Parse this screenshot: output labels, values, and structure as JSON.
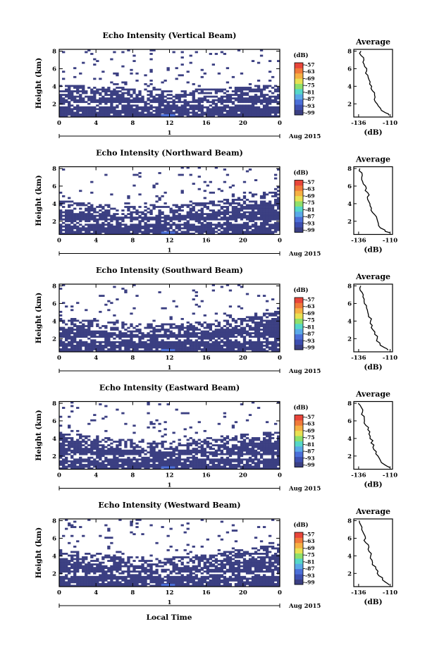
{
  "chart_data": [
    {
      "type": "heatmap",
      "title": "Echo Intensity (Vertical Beam)",
      "ylabel": "Height (km)",
      "xticks": [
        "0",
        "4",
        "8",
        "12",
        "16",
        "20",
        "0"
      ],
      "yticks": [
        "2",
        "4",
        "6",
        "8"
      ],
      "date_label": "1",
      "date_suffix": "Aug 2015",
      "colorbar_unit": "(dB)",
      "colorbar_ticks": [
        "-57",
        "-63",
        "-69",
        "-75",
        "-81",
        "-87",
        "-93",
        "-99"
      ],
      "profile_title": "Average",
      "profile_xticks": [
        "-136",
        "-110"
      ],
      "profile_yticks": [
        "2",
        "4",
        "6",
        "8"
      ],
      "profile_xlabel": "(dB)",
      "xlim": [
        0,
        24
      ],
      "ylim": [
        0.5,
        8.2
      ],
      "boundary_height": [
        3.7,
        3.6,
        3.5,
        3.4,
        3.3,
        3.2,
        3.1,
        3.1,
        3.2,
        3.3,
        3.5,
        3.6,
        3.6
      ],
      "profile": {
        "height": [
          0.7,
          1.0,
          1.5,
          2.0,
          2.5,
          3.0,
          3.5,
          4.0,
          4.5,
          5.0,
          5.5,
          6.0,
          6.5,
          7.0,
          7.5,
          8.0
        ],
        "db": [
          -111,
          -114,
          -118,
          -121,
          -123,
          -123,
          -125,
          -126,
          -127,
          -128,
          -130,
          -130,
          -132,
          -132,
          -134,
          -134
        ]
      }
    },
    {
      "type": "heatmap",
      "title": "Echo Intensity (Northward Beam)",
      "ylabel": "Height (km)",
      "xticks": [
        "0",
        "4",
        "8",
        "12",
        "16",
        "20",
        "0"
      ],
      "yticks": [
        "2",
        "4",
        "6",
        "8"
      ],
      "date_label": "1",
      "date_suffix": "Aug 2015",
      "colorbar_unit": "(dB)",
      "colorbar_ticks": [
        "-57",
        "-63",
        "-69",
        "-75",
        "-81",
        "-87",
        "-93",
        "-99"
      ],
      "profile_title": "Average",
      "profile_xticks": [
        "-136",
        "-110"
      ],
      "profile_yticks": [
        "2",
        "4",
        "6",
        "8"
      ],
      "profile_xlabel": "(dB)",
      "xlim": [
        0,
        24
      ],
      "ylim": [
        0.5,
        8.2
      ],
      "boundary_height": [
        3.9,
        3.7,
        3.5,
        3.3,
        3.2,
        3.2,
        3.3,
        3.5,
        3.7,
        4.0,
        4.4,
        4.8,
        5.0
      ],
      "profile": {
        "height": [
          0.7,
          1.0,
          1.5,
          2.0,
          2.5,
          3.0,
          3.5,
          4.0,
          4.5,
          5.0,
          5.5,
          6.0,
          6.5,
          7.0,
          7.5,
          8.0
        ],
        "db": [
          -111,
          -115,
          -119,
          -121,
          -122,
          -124,
          -125,
          -126,
          -128,
          -128,
          -130,
          -131,
          -132,
          -133,
          -134,
          -135
        ]
      }
    },
    {
      "type": "heatmap",
      "title": "Echo Intensity (Southward Beam)",
      "ylabel": "Height (km)",
      "xticks": [
        "0",
        "4",
        "8",
        "12",
        "16",
        "20",
        "0"
      ],
      "yticks": [
        "2",
        "4",
        "6",
        "8"
      ],
      "date_label": "1",
      "date_suffix": "Aug 2015",
      "colorbar_unit": "(dB)",
      "colorbar_ticks": [
        "-57",
        "-63",
        "-69",
        "-75",
        "-81",
        "-87",
        "-93",
        "-99"
      ],
      "profile_title": "Average",
      "profile_xticks": [
        "-136",
        "-110"
      ],
      "profile_yticks": [
        "2",
        "4",
        "6",
        "8"
      ],
      "profile_xlabel": "(dB)",
      "xlim": [
        0,
        24
      ],
      "ylim": [
        0.5,
        8.2
      ],
      "boundary_height": [
        4.0,
        3.8,
        3.6,
        3.4,
        3.3,
        3.2,
        3.3,
        3.4,
        3.5,
        3.6,
        4.0,
        4.6,
        5.2
      ],
      "profile": {
        "height": [
          0.7,
          1.0,
          1.5,
          2.0,
          2.5,
          3.0,
          3.5,
          4.0,
          4.5,
          5.0,
          5.5,
          6.0,
          6.5,
          7.0,
          7.5,
          8.0
        ],
        "db": [
          -112,
          -115,
          -119,
          -121,
          -122,
          -124,
          -125,
          -126,
          -127,
          -128,
          -130,
          -131,
          -132,
          -133,
          -134,
          -135
        ]
      }
    },
    {
      "type": "heatmap",
      "title": "Echo Intensity (Eastward Beam)",
      "ylabel": "Height (km)",
      "xticks": [
        "0",
        "4",
        "8",
        "12",
        "16",
        "20",
        "0"
      ],
      "yticks": [
        "2",
        "4",
        "6",
        "8"
      ],
      "date_label": "1",
      "date_suffix": "Aug 2015",
      "colorbar_unit": "(dB)",
      "colorbar_ticks": [
        "-57",
        "-63",
        "-69",
        "-75",
        "-81",
        "-87",
        "-93",
        "-99"
      ],
      "profile_title": "Average",
      "profile_xticks": [
        "-136",
        "-110"
      ],
      "profile_yticks": [
        "2",
        "4",
        "6",
        "8"
      ],
      "profile_xlabel": "(dB)",
      "xlim": [
        0,
        24
      ],
      "ylim": [
        0.5,
        8.2
      ],
      "boundary_height": [
        4.2,
        4.0,
        3.8,
        3.6,
        3.4,
        3.3,
        3.3,
        3.4,
        3.6,
        3.8,
        4.0,
        4.2,
        4.4
      ],
      "profile": {
        "height": [
          0.7,
          1.0,
          1.5,
          2.0,
          2.5,
          3.0,
          3.5,
          4.0,
          4.5,
          5.0,
          5.5,
          6.0,
          6.5,
          7.0,
          7.5,
          8.0
        ],
        "db": [
          -111,
          -114,
          -118,
          -120,
          -122,
          -124,
          -125,
          -126,
          -127,
          -128,
          -130,
          -131,
          -132,
          -133,
          -134,
          -136
        ]
      }
    },
    {
      "type": "heatmap",
      "title": "Echo Intensity (Westward Beam)",
      "ylabel": "Height (km)",
      "xticks": [
        "0",
        "4",
        "8",
        "12",
        "16",
        "20",
        "0"
      ],
      "yticks": [
        "2",
        "4",
        "6",
        "8"
      ],
      "date_label": "1",
      "date_suffix": "Aug 2015",
      "colorbar_unit": "(dB)",
      "colorbar_ticks": [
        "-57",
        "-63",
        "-69",
        "-75",
        "-81",
        "-87",
        "-93",
        "-99"
      ],
      "profile_title": "Average",
      "profile_xticks": [
        "-136",
        "-110"
      ],
      "profile_yticks": [
        "2",
        "4",
        "6",
        "8"
      ],
      "profile_xlabel": "(dB)",
      "xlim": [
        0,
        24
      ],
      "ylim": [
        0.5,
        8.2
      ],
      "boundary_height": [
        4.2,
        4.0,
        3.8,
        3.6,
        3.4,
        3.3,
        3.3,
        3.5,
        3.7,
        4.0,
        4.3,
        4.6,
        4.8
      ],
      "profile": {
        "height": [
          0.7,
          1.0,
          1.5,
          2.0,
          2.5,
          3.0,
          3.5,
          4.0,
          4.5,
          5.0,
          5.5,
          6.0,
          6.5,
          7.0,
          7.5,
          8.0
        ],
        "db": [
          -111,
          -114,
          -117,
          -120,
          -122,
          -124,
          -125,
          -126,
          -127,
          -128,
          -130,
          -131,
          -132,
          -133,
          -134,
          -136
        ]
      }
    }
  ],
  "footer": {
    "xlabel": "Local Time"
  },
  "colors": {
    "low": "#3b3f82",
    "mid": "#4b6fd8",
    "colorbar": [
      "#3b3f82",
      "#3d4fb0",
      "#4b6fd8",
      "#5aa9e8",
      "#56d7c8",
      "#8fe06a",
      "#e8e052",
      "#f5b043",
      "#f07a3a",
      "#e8453a"
    ]
  }
}
